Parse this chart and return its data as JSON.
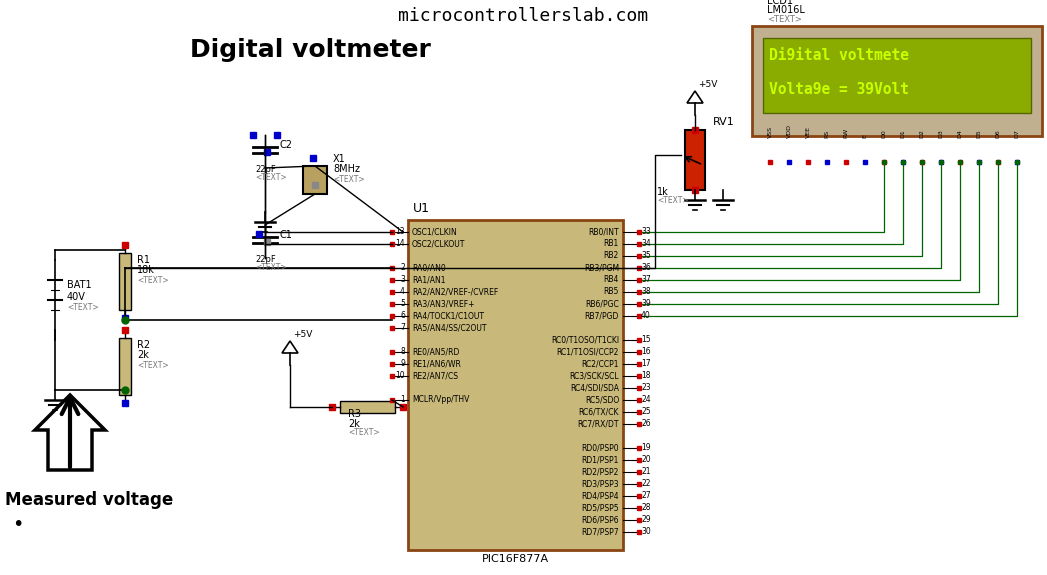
{
  "title": "microcontrollerslab.com",
  "subtitle": "Digital voltmeter",
  "background_color": "#ffffff",
  "figsize": [
    10.47,
    5.75
  ],
  "dpi": 100,
  "lcd_bg": "#8aac00",
  "lcd_outer_bg": "#c8b87a",
  "lcd_text_color": "#c8ff00",
  "lcd_line1": "Di9ital voltmete",
  "lcd_line2": "Volta9e = 39Volt",
  "chip_color": "#c8b87a",
  "chip_border": "#8b4513",
  "chip_label": "U1",
  "chip_bottom_label": "PIC16F877A",
  "measured_voltage_label": "Measured voltage",
  "wire_color": "#006400",
  "pin_dot_red": "#cc0000",
  "pin_dot_blue": "#0000cc",
  "pin_dot_gray": "#888888",
  "resistor_color": "#c8b87a",
  "green_wire": "#006400"
}
